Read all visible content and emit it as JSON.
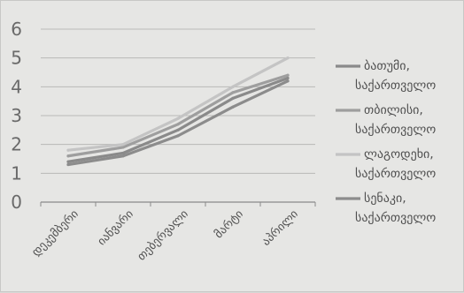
{
  "chart_data": {
    "type": "line",
    "categories": [
      "დეკემბერი",
      "იანვარი",
      "თებერვალი",
      "მარტი",
      "აპრილი"
    ],
    "ylim": [
      0,
      6
    ],
    "yticks": [
      "0",
      "1",
      "2",
      "3",
      "4",
      "5",
      "6"
    ],
    "grid": true,
    "legend_position": "right",
    "series": [
      {
        "name": "ბათუმი, საქართველო",
        "color": "#8a8a8a",
        "values": [
          1.4,
          1.7,
          2.5,
          3.6,
          4.3
        ]
      },
      {
        "name": "თბილისი, საქართველო",
        "color": "#9e9e9e",
        "values": [
          1.6,
          1.9,
          2.7,
          3.8,
          4.4
        ]
      },
      {
        "name": "ლაგოდეხი, საქართველო",
        "color": "#c4c4c4",
        "values": [
          1.8,
          2.0,
          2.9,
          4.0,
          5.0
        ]
      },
      {
        "name": "სენაკი, საქართველო",
        "color": "#8c8c8c",
        "values": [
          1.3,
          1.6,
          2.3,
          3.3,
          4.2
        ]
      }
    ]
  }
}
